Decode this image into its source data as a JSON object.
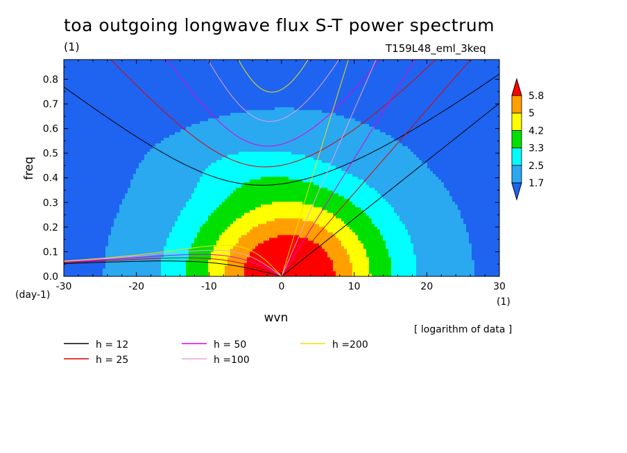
{
  "chart_data": {
    "type": "heatmap",
    "title": "toa outgoing longwave flux S-T power spectrum",
    "units_label": "(1)",
    "run_label": "T159L48_eml_3keq",
    "xlabel": "wvn",
    "ylabel": "freq",
    "x_unit_label": "(1)",
    "y_unit_label": "(day-1)",
    "note": "[ logarithm of data ]",
    "xlim": [
      -30,
      30
    ],
    "ylim": [
      0,
      0.88
    ],
    "x_ticks": [
      "-30",
      "-20",
      "-10",
      "0",
      "10",
      "20",
      "30"
    ],
    "y_ticks": [
      "0.0",
      "0.1",
      "0.2",
      "0.3",
      "0.4",
      "0.5",
      "0.6",
      "0.7",
      "0.8"
    ],
    "x_tick_values": [
      -30,
      -20,
      -10,
      0,
      10,
      20,
      30
    ],
    "y_tick_values": [
      0,
      0.1,
      0.2,
      0.3,
      0.4,
      0.5,
      0.6,
      0.7,
      0.8
    ],
    "contour_levels": [
      "1.7",
      "2.5",
      "3.3",
      "4.2",
      "5",
      "5.8"
    ],
    "level_values": [
      1.7,
      2.5,
      3.3,
      4.2,
      5,
      5.8
    ],
    "colors": [
      "#1e64f0",
      "#2aa8f0",
      "#00ffff",
      "#00e000",
      "#ffff00",
      "#ffa000",
      "#ff0000"
    ],
    "dispersion_curves": [
      {
        "name": "h = 12",
        "h": 12,
        "color": "#000000"
      },
      {
        "name": "h = 25",
        "h": 25,
        "color": "#e00000"
      },
      {
        "name": "h = 50",
        "h": 50,
        "color": "#e000e0"
      },
      {
        "name": "h =100",
        "h": 100,
        "color": "#e8a0e8"
      },
      {
        "name": "h =200",
        "h": 200,
        "color": "#f0e000"
      }
    ],
    "grid": false
  }
}
